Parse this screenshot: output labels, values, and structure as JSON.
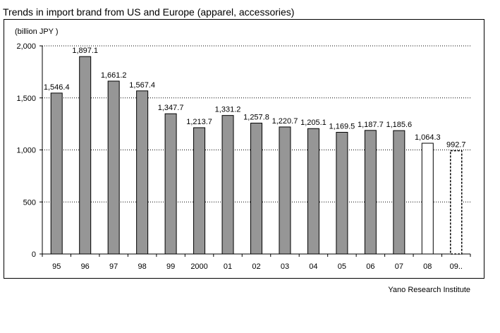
{
  "title": "Trends in import brand from US and Europe (apparel, accessories)",
  "unit_label": "(billion JPY )",
  "source": "Yano Research Institute",
  "colors": {
    "actual_bar": "#969696",
    "estimate_bar": "#ffffff",
    "bar_stroke": "#000000"
  },
  "chart_data": {
    "type": "bar",
    "title": "Trends in import brand from US and Europe (apparel, accessories)",
    "ylabel": "(billion JPY )",
    "xlabel": "",
    "categories": [
      "95",
      "96",
      "97",
      "98",
      "99",
      "2000",
      "01",
      "02",
      "03",
      "04",
      "05",
      "06",
      "07",
      "08",
      "09.."
    ],
    "values": [
      1546.4,
      1897.1,
      1661.2,
      1567.4,
      1347.7,
      1213.7,
      1331.2,
      1257.8,
      1220.7,
      1205.1,
      1169.5,
      1187.7,
      1185.6,
      1064.3,
      992.7
    ],
    "value_labels": [
      "1,546.4",
      "1,897.1",
      "1,661.2",
      "1,567.4",
      "1,347.7",
      "1,213.7",
      "1,331.2",
      "1,257.8",
      "1,220.7",
      "1,205.1",
      "1,169.5",
      "1,187.7",
      "1,185.6",
      "1,064.3",
      "992.7"
    ],
    "bar_styles": [
      "solid",
      "solid",
      "solid",
      "solid",
      "solid",
      "solid",
      "solid",
      "solid",
      "solid",
      "solid",
      "solid",
      "solid",
      "solid",
      "outline",
      "dashed"
    ],
    "ylim": [
      0,
      2000
    ],
    "yticks": [
      0,
      500,
      1000,
      1500,
      2000
    ],
    "ytick_labels": [
      "0",
      "500",
      "1,000",
      "1,500",
      "2,000"
    ],
    "grid": "horizontal dotted",
    "legend": "none"
  }
}
